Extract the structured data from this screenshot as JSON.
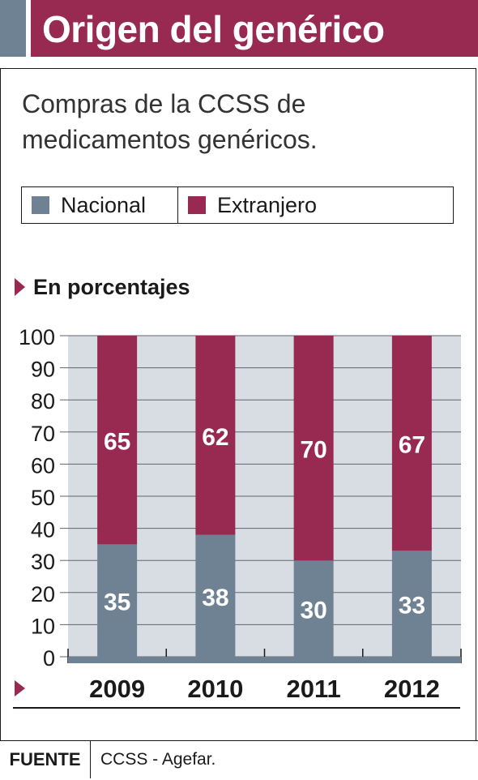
{
  "header": {
    "title": "Origen del genérico"
  },
  "subtitle": "Compras de la CCSS de medicamentos genéricos.",
  "legend": [
    {
      "label": "Nacional",
      "color": "#6f8294"
    },
    {
      "label": "Extranjero",
      "color": "#982a52"
    }
  ],
  "units_label": "En porcentajes",
  "source": {
    "label": "FUENTE",
    "text": "CCSS - Agefar."
  },
  "colors": {
    "accent": "#982a52",
    "nacional": "#6f8294",
    "extranjero": "#982a52",
    "plot_bg": "#d8dde4"
  },
  "chart_data": {
    "type": "bar",
    "stacked": true,
    "categories": [
      "2009",
      "2010",
      "2011",
      "2012"
    ],
    "series": [
      {
        "name": "Nacional",
        "values": [
          35,
          38,
          30,
          33
        ]
      },
      {
        "name": "Extranjero",
        "values": [
          65,
          62,
          70,
          67
        ]
      }
    ],
    "ylim": [
      0,
      100
    ],
    "yticks": [
      0,
      10,
      20,
      30,
      40,
      50,
      60,
      70,
      80,
      90,
      100
    ],
    "grid": true,
    "legend_position": "top"
  }
}
